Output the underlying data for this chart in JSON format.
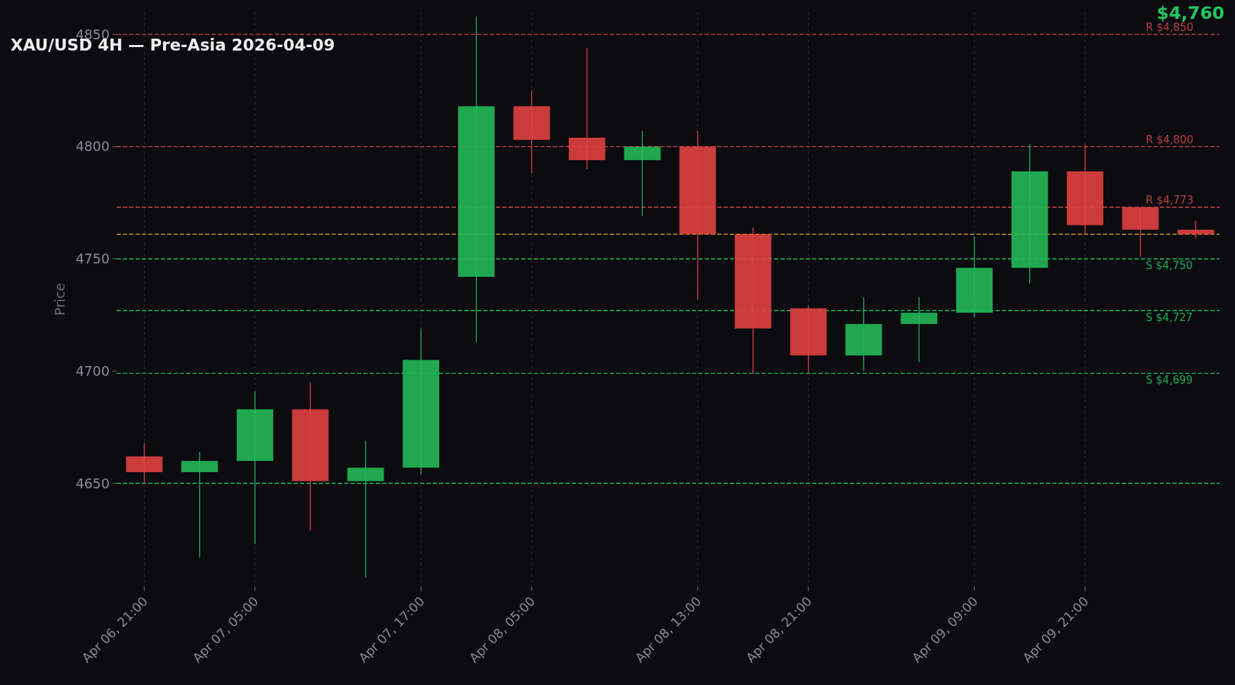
{
  "chart_data": {
    "type": "candlestick",
    "title": "XAU/USD 4H — Pre-Asia 2026-04-09",
    "ylabel": "Price",
    "annotations": [
      "$4,760"
    ],
    "categories": [
      "Apr 06, 21:00",
      null,
      "Apr 07, 05:00",
      null,
      null,
      "Apr 07, 17:00",
      null,
      "Apr 08, 05:00",
      null,
      null,
      "Apr 08, 13:00",
      null,
      "Apr 08, 21:00",
      null,
      null,
      "Apr 09, 09:00",
      null,
      "Apr 09, 21:00",
      null,
      null
    ],
    "ohlc": [
      [
        4662,
        4668,
        4650,
        4655
      ],
      [
        4655,
        4664,
        4617,
        4660
      ],
      [
        4660,
        4691,
        4623,
        4683
      ],
      [
        4683,
        4695,
        4629,
        4651
      ],
      [
        4651,
        4669,
        4608,
        4657
      ],
      [
        4657,
        4719,
        4654,
        4705
      ],
      [
        4742,
        4858,
        4713,
        4818
      ],
      [
        4818,
        4825,
        4788,
        4803
      ],
      [
        4804,
        4844,
        4790,
        4794
      ],
      [
        4794,
        4807,
        4769,
        4800
      ],
      [
        4800,
        4807,
        4732,
        4761
      ],
      [
        4761,
        4764,
        4699,
        4719
      ],
      [
        4728,
        4729,
        4699,
        4707
      ],
      [
        4707,
        4733,
        4700,
        4721
      ],
      [
        4721,
        4733,
        4704,
        4726
      ],
      [
        4726,
        4760,
        4724,
        4746
      ],
      [
        4746,
        4801,
        4739,
        4789
      ],
      [
        4789,
        4801,
        4761,
        4765
      ],
      [
        4773,
        4773,
        4751,
        4763
      ],
      [
        4763,
        4767,
        4759,
        4761
      ]
    ],
    "colors": [
      "#e04040",
      "#22b857",
      "#22b857",
      "#e04040",
      "#22b857",
      "#22b857",
      "#22b857",
      "#e04040",
      "#e04040",
      "#22b857",
      "#e04040",
      "#e04040",
      "#e04040",
      "#22b857",
      "#22b857",
      "#22b857",
      "#22b857",
      "#e04040",
      "#e04040",
      "#e04040"
    ],
    "ylim": [
      4604,
      4860
    ],
    "yticks": [
      4650,
      4700,
      4750,
      4800,
      4850
    ],
    "grid": "x",
    "ref_lines": [
      {
        "axis": "y",
        "value": 4850,
        "label": "R $4,850",
        "color": "#d94848",
        "line_style": "dashed"
      },
      {
        "axis": "y",
        "value": 4800,
        "label": "R $4,800",
        "color": "#d94848",
        "line_style": "dashed"
      },
      {
        "axis": "y",
        "value": 4773,
        "label": "R $4,773",
        "color": "#d94848",
        "line_style": "dashed"
      },
      {
        "axis": "y",
        "value": 4761,
        "color": "#f5a623",
        "line_style": "dashed"
      },
      {
        "axis": "y",
        "value": 4750,
        "label": "S $4,750",
        "color": "#22c55e",
        "line_style": "dashed"
      },
      {
        "axis": "y",
        "value": 4727,
        "label": "S $4,727",
        "color": "#22c55e",
        "line_style": "dashed"
      },
      {
        "axis": "y",
        "value": 4699,
        "label": "S $4,699",
        "color": "#22c55e",
        "line_style": "dashed"
      },
      {
        "axis": "y",
        "value": 4650,
        "color": "#22c55e",
        "line_style": "dashed"
      }
    ]
  }
}
